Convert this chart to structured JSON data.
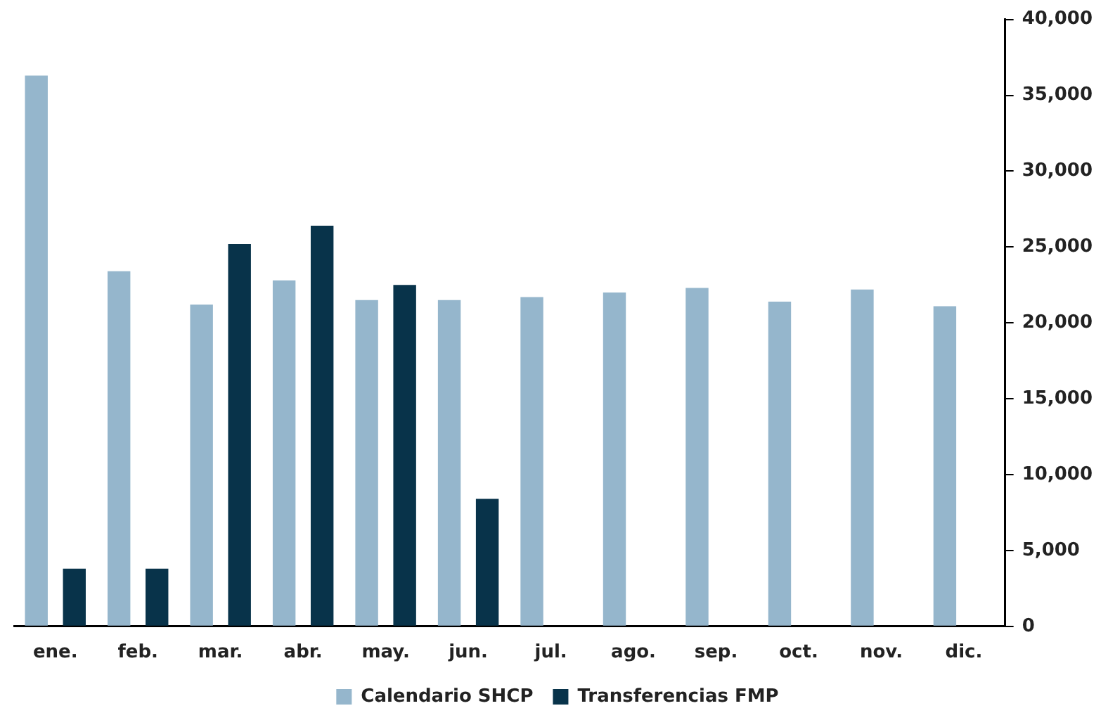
{
  "chart_data": {
    "type": "bar",
    "categories": [
      "ene.",
      "feb.",
      "mar.",
      "abr.",
      "may.",
      "jun.",
      "jul.",
      "ago.",
      "sep.",
      "oct.",
      "nov.",
      "dic."
    ],
    "series": [
      {
        "name": "Calendario SHCP",
        "color": "#95b6cc",
        "values": [
          36300,
          23400,
          21200,
          22800,
          21500,
          21500,
          21700,
          22000,
          22300,
          21400,
          22200,
          21100
        ]
      },
      {
        "name": "Transferencias FMP",
        "color": "#08334a",
        "values": [
          3800,
          3800,
          25200,
          26400,
          22500,
          8400,
          null,
          null,
          null,
          null,
          null,
          null
        ]
      }
    ],
    "ylim": [
      0,
      40000
    ],
    "yticks": [
      {
        "value": 0,
        "label": "0"
      },
      {
        "value": 5000,
        "label": "5,000"
      },
      {
        "value": 10000,
        "label": "10,000"
      },
      {
        "value": 15000,
        "label": "15,000"
      },
      {
        "value": 20000,
        "label": "20,000"
      },
      {
        "value": 25000,
        "label": "25,000"
      },
      {
        "value": 30000,
        "label": "30,000"
      },
      {
        "value": 35000,
        "label": "35,000"
      },
      {
        "value": 40000,
        "label": "40,000"
      }
    ],
    "grid": false,
    "legend": "bottom"
  }
}
